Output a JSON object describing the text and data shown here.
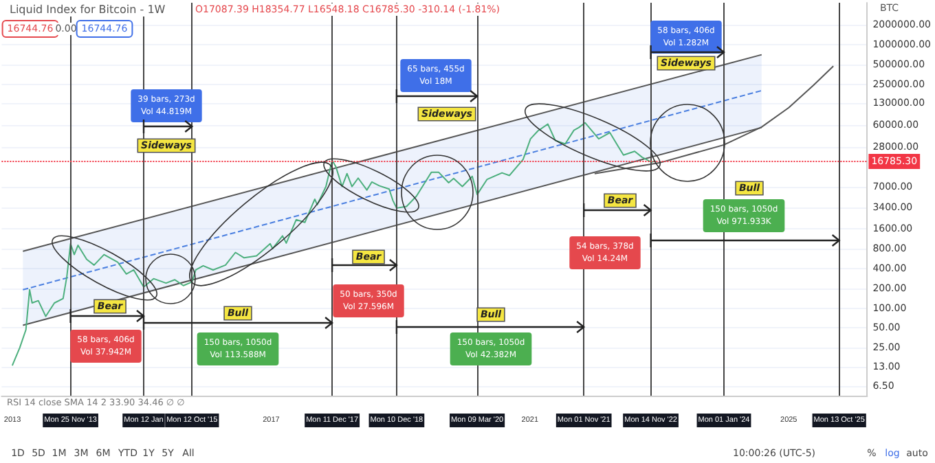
{
  "chart_data": {
    "type": "line",
    "title": "Liquid Index for Bitcoin - 1W",
    "subtitle": "O17087.39 H18354.77 L16548.18 C16785.30 -310.14 (-1.81%)",
    "ylabel": "BTC",
    "log": "y",
    "grid": "y",
    "marker": "none",
    "xlim": [
      "2012-11-01",
      "2026-03-20"
    ],
    "ylim": [
      4.7,
      4300000
    ],
    "xticks": [
      {
        "value": "2013-01-01",
        "label": "2013"
      },
      {
        "value": "2013-11-25",
        "label": "Mon 25 Nov '13"
      },
      {
        "value": "2015-01-12",
        "label": "Mon 12 Jan"
      },
      {
        "value": "2015-10-12",
        "label": "Mon 12 Oct '15"
      },
      {
        "value": "2017-01-01",
        "label": "2017"
      },
      {
        "value": "2017-12-11",
        "label": "Mon 11 Dec '17"
      },
      {
        "value": "2018-12-10",
        "label": "Mon 10 Dec '18"
      },
      {
        "value": "2020-03-09",
        "label": "Mon 09 Mar '20"
      },
      {
        "value": "2021-01-01",
        "label": "2021"
      },
      {
        "value": "2021-11-01",
        "label": "Mon 01 Nov '21"
      },
      {
        "value": "2022-11-14",
        "label": "Mon 14 Nov '22"
      },
      {
        "value": "2024-01-01",
        "label": "Mon 01 Jan '24"
      },
      {
        "value": "2025-01-01",
        "label": "2025"
      },
      {
        "value": "2025-10-13",
        "label": "Mon 13 Oct '25"
      }
    ],
    "yticks": [
      {
        "value": 2000000,
        "label": "2000000.00"
      },
      {
        "value": 1000000,
        "label": "1000000.00"
      },
      {
        "value": 500000,
        "label": "500000.00"
      },
      {
        "value": 250000,
        "label": "250000.00"
      },
      {
        "value": 130000,
        "label": "130000.00"
      },
      {
        "value": 60000,
        "label": "60000.00"
      },
      {
        "value": 28000,
        "label": "28000.00"
      },
      {
        "value": 7000,
        "label": "7000.00"
      },
      {
        "value": 3400,
        "label": "3400.00"
      },
      {
        "value": 1600,
        "label": "1600.00"
      },
      {
        "value": 800,
        "label": "800.00"
      },
      {
        "value": 400,
        "label": "400.00"
      },
      {
        "value": 200,
        "label": "200.00"
      },
      {
        "value": 100,
        "label": "100.00"
      },
      {
        "value": 50,
        "label": "50.00"
      },
      {
        "value": 25,
        "label": "25.00"
      },
      {
        "value": 13,
        "label": "13.00"
      },
      {
        "value": 6.5,
        "label": "6.50"
      }
    ],
    "series": [
      {
        "color": "#4caf7d",
        "x": [
          "2012-12-31",
          "2013-02-11",
          "2013-03-18",
          "2013-04-08",
          "2013-04-22",
          "2013-05-27",
          "2013-07-08",
          "2013-08-26",
          "2013-10-14",
          "2013-11-04",
          "2013-11-25",
          "2013-12-16",
          "2014-01-06",
          "2014-02-24",
          "2014-04-07",
          "2014-06-02",
          "2014-08-18",
          "2014-10-06",
          "2014-11-17",
          "2015-01-12",
          "2015-03-09",
          "2015-05-18",
          "2015-07-06",
          "2015-08-24",
          "2015-10-12",
          "2015-11-02",
          "2015-12-14",
          "2016-02-08",
          "2016-04-18",
          "2016-06-13",
          "2016-08-01",
          "2016-10-10",
          "2016-12-26",
          "2017-01-09",
          "2017-03-06",
          "2017-03-27",
          "2017-05-22",
          "2017-07-10",
          "2017-09-04",
          "2017-09-18",
          "2017-11-06",
          "2017-12-11",
          "2018-01-01",
          "2018-02-05",
          "2018-03-05",
          "2018-04-02",
          "2018-05-07",
          "2018-06-25",
          "2018-07-23",
          "2018-09-03",
          "2018-10-29",
          "2018-11-19",
          "2018-12-10",
          "2019-02-04",
          "2019-04-01",
          "2019-06-24",
          "2019-08-05",
          "2019-09-30",
          "2019-10-28",
          "2019-12-16",
          "2020-02-10",
          "2020-03-09",
          "2020-05-04",
          "2020-07-27",
          "2020-09-07",
          "2020-11-23",
          "2021-01-04",
          "2021-02-15",
          "2021-04-12",
          "2021-05-24",
          "2021-07-19",
          "2021-09-06",
          "2021-10-04",
          "2021-11-08",
          "2021-12-20",
          "2022-01-24",
          "2022-03-28",
          "2022-05-09",
          "2022-06-13",
          "2022-08-15",
          "2022-09-26",
          "2022-11-07",
          "2022-11-21",
          "2022-12-05",
          "2022-12-12"
        ],
        "values": [
          13.5,
          25,
          47,
          190,
          120,
          130,
          75,
          120,
          140,
          300,
          950,
          650,
          900,
          550,
          450,
          650,
          500,
          330,
          380,
          210,
          280,
          240,
          270,
          220,
          250,
          380,
          440,
          380,
          450,
          700,
          580,
          620,
          950,
          800,
          1250,
          970,
          2200,
          2000,
          4500,
          3700,
          7000,
          17500,
          14000,
          7000,
          11000,
          7000,
          9400,
          6200,
          8200,
          7200,
          6400,
          4300,
          3300,
          3500,
          5000,
          11500,
          11500,
          8000,
          9300,
          7000,
          10000,
          5300,
          9000,
          11300,
          10300,
          18000,
          37000,
          49000,
          62000,
          35000,
          31000,
          50000,
          55000,
          65000,
          48000,
          37000,
          46000,
          30000,
          21000,
          24000,
          19500,
          17000,
          16500,
          17100,
          16785.3
        ]
      },
      {
        "color": "#4a7fe0",
        "line_style": "dashed",
        "x": [
          "2013-03-01",
          "2024-08-01"
        ],
        "values": [
          190,
          200000
        ],
        "lower": [
          55,
          55000
        ],
        "upper": [
          730,
          700000
        ]
      },
      {
        "color": "#555555",
        "x": [
          "2013-03-01",
          "2024-08-01"
        ],
        "values": [
          730,
          700000
        ]
      },
      {
        "color": "#555555",
        "x": [
          "2013-03-01",
          "2024-08-01"
        ],
        "values": [
          55,
          55000
        ]
      },
      {
        "color": "#555555",
        "x": [
          "2022-01-01",
          "2023-01-01",
          "2024-01-01",
          "2024-08-01",
          "2025-01-01",
          "2025-05-20",
          "2025-09-10"
        ],
        "values": [
          11000,
          16000,
          30000,
          56000,
          110000,
          240000,
          470000
        ]
      }
    ],
    "ref_lines": [
      {
        "axis": "x",
        "value": "2013-11-25",
        "color": "#444444"
      },
      {
        "axis": "x",
        "value": "2015-01-12",
        "color": "#444444"
      },
      {
        "axis": "x",
        "value": "2015-10-12",
        "color": "#444444"
      },
      {
        "axis": "x",
        "value": "2017-12-11",
        "color": "#444444"
      },
      {
        "axis": "x",
        "value": "2018-12-10",
        "color": "#444444"
      },
      {
        "axis": "x",
        "value": "2020-03-09",
        "color": "#444444"
      },
      {
        "axis": "x",
        "value": "2021-11-01",
        "color": "#444444"
      },
      {
        "axis": "x",
        "value": "2022-11-14",
        "color": "#444444"
      },
      {
        "axis": "x",
        "value": "2024-01-01",
        "color": "#444444"
      },
      {
        "axis": "x",
        "value": "2025-10-13",
        "color": "#444444"
      },
      {
        "axis": "y",
        "value": 16785.3,
        "label": "16785.30",
        "color": "#f23645",
        "line_style": "dotted"
      }
    ],
    "annotations": [
      "16744.76",
      "0.00",
      "16744.76",
      "RSI 14 close SMA 14 2 33.90 34.46 ∅ ∅",
      "1D",
      "5D",
      "1M",
      "3M",
      "6M",
      "YTD",
      "1Y",
      "5Y",
      "All",
      "10:00:26 (UTC-5)",
      "%",
      "log",
      "auto",
      "Bear",
      "58 bars, 406d\nVol 37.942M",
      "Sideways",
      "39 bars, 273d\nVol 44.819M",
      "Bull",
      "150 bars, 1050d\nVol 113.588M",
      "Bear",
      "50 bars, 350d\nVol 27.596M",
      "Sideways",
      "65 bars, 455d\nVol 18M",
      "Bull",
      "150 bars, 1050d\nVol 42.382M",
      "Bear",
      "54 bars, 378d\nVol 14.24M",
      "Sideways",
      "58 bars, 406d\nVol 1.282M",
      "Bull",
      "150 bars, 1050d\nVol 971.933K"
    ]
  }
}
